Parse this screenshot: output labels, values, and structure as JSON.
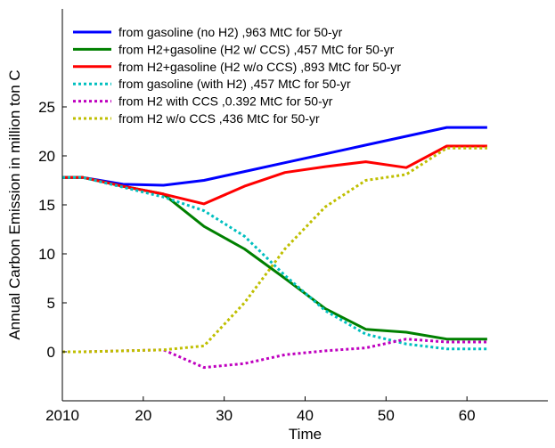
{
  "chart_data": {
    "type": "line",
    "title": "",
    "xlabel": "Time",
    "ylabel": "Annual Carbon Emission in million ton C",
    "xlim": [
      2010,
      2070
    ],
    "ylim": [
      -5,
      35
    ],
    "xticks": [
      2010,
      2020,
      2030,
      2040,
      2050,
      2060
    ],
    "xtick_labels": [
      "2010",
      "20",
      "30",
      "40",
      "50",
      "60"
    ],
    "yticks": [
      0,
      5,
      10,
      15,
      20,
      25
    ],
    "ytick_labels": [
      "0",
      "5",
      "10",
      "15",
      "20",
      "25"
    ],
    "grid": false,
    "legend_position": "top-left",
    "x": [
      2010,
      2012.5,
      2017.5,
      2022.5,
      2027.5,
      2032.5,
      2037.5,
      2042.5,
      2047.5,
      2052.5,
      2057.5,
      2062.5
    ],
    "series": [
      {
        "name": "from gasoline (no H2) ,963 MtC for 50-yr",
        "color": "#0000ff",
        "style": "solid",
        "values": [
          17.8,
          17.8,
          17.1,
          17.0,
          17.5,
          18.4,
          19.3,
          20.2,
          21.1,
          22.0,
          22.9,
          22.9
        ]
      },
      {
        "name": "from H2+gasoline (H2 w/ CCS) ,457 MtC for 50-yr",
        "color": "#008000",
        "style": "solid",
        "values": [
          17.8,
          17.8,
          16.9,
          16.1,
          12.8,
          10.5,
          7.5,
          4.4,
          2.3,
          2.0,
          1.3,
          1.3
        ]
      },
      {
        "name": "from H2+gasoline (H2 w/o CCS) ,893 MtC for 50-yr",
        "color": "#ff0000",
        "style": "solid",
        "values": [
          17.8,
          17.8,
          16.9,
          16.1,
          15.1,
          16.9,
          18.3,
          18.9,
          19.4,
          18.8,
          21.0,
          21.0
        ]
      },
      {
        "name": "from gasoline (with H2) ,457 MtC for 50-yr",
        "color": "#00bfbf",
        "style": "dotted",
        "values": [
          17.8,
          17.8,
          16.8,
          15.8,
          14.4,
          11.8,
          7.8,
          4.2,
          1.8,
          0.8,
          0.3,
          0.3
        ]
      },
      {
        "name": "from H2 with CCS ,0.392 MtC for 50-yr",
        "color": "#bf00bf",
        "style": "dotted",
        "values": [
          0,
          0,
          0.1,
          0.2,
          -1.6,
          -1.2,
          -0.3,
          0.1,
          0.4,
          1.3,
          1.0,
          1.0
        ]
      },
      {
        "name": "from H2 w/o CCS ,436 MtC for 50-yr",
        "color": "#bfbf00",
        "style": "dotted",
        "values": [
          0,
          0,
          0.1,
          0.2,
          0.6,
          5.0,
          10.5,
          14.8,
          17.5,
          18.1,
          20.8,
          20.8
        ]
      }
    ]
  }
}
